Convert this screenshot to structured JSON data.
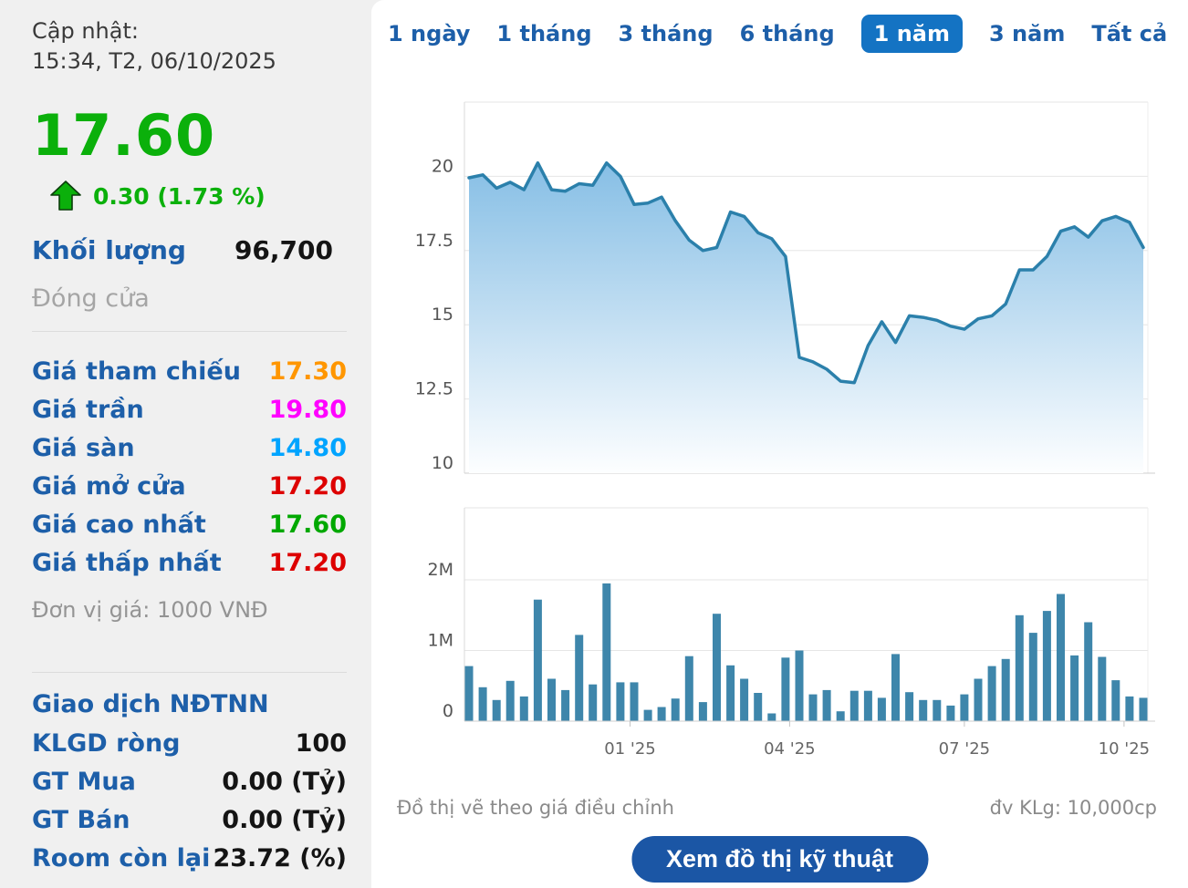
{
  "sidebar": {
    "updated_label": "Cập nhật:",
    "updated_time": "15:34, T2, 06/10/2025",
    "price": "17.60",
    "change": "0.30 (1.73 %)",
    "volume_label": "Khối lượng",
    "volume_value": "96,700",
    "close_label": "Đóng cửa",
    "price_rows": [
      {
        "label": "Giá tham chiếu",
        "value": "17.30",
        "color": "#ff9600"
      },
      {
        "label": "Giá trần",
        "value": "19.80",
        "color": "#ff00ff"
      },
      {
        "label": "Giá sàn",
        "value": "14.80",
        "color": "#00a4ff"
      },
      {
        "label": "Giá mở cửa",
        "value": "17.20",
        "color": "#dd0000"
      },
      {
        "label": "Giá cao nhất",
        "value": "17.60",
        "color": "#00a800"
      },
      {
        "label": "Giá thấp nhất",
        "value": "17.20",
        "color": "#dd0000"
      }
    ],
    "unit_note": "Đơn vị giá: 1000 VNĐ",
    "foreign_section_title": "Giao dịch NĐTNN",
    "foreign_rows": [
      {
        "label": "KLGD ròng",
        "value": "100"
      },
      {
        "label": "GT Mua",
        "value": "0.00 (Tỷ)"
      },
      {
        "label": "GT Bán",
        "value": "0.00 (Tỷ)"
      },
      {
        "label": "Room còn lại",
        "value": "23.72 (%)"
      }
    ]
  },
  "tabs": {
    "items": [
      "1 ngày",
      "1 tháng",
      "3 tháng",
      "6 tháng",
      "1 năm",
      "3 năm",
      "Tất cả"
    ],
    "active_index": 4,
    "candlestick_icon": "candlestick-chart-icon"
  },
  "chart_data": [
    {
      "type": "area",
      "series_name": "adjusted-close-price",
      "title": "",
      "xlabel": "",
      "ylabel": "",
      "y_unit": "1000 VND",
      "ylim": [
        10,
        22.5
      ],
      "yticks": [
        10,
        12.5,
        15,
        17.5,
        20
      ],
      "grid": true,
      "values": [
        19.95,
        20.05,
        19.6,
        19.8,
        19.55,
        20.45,
        19.55,
        19.5,
        19.75,
        19.7,
        20.45,
        20.0,
        19.05,
        19.1,
        19.3,
        18.5,
        17.85,
        17.5,
        17.6,
        18.8,
        18.65,
        18.1,
        17.9,
        17.3,
        13.9,
        13.75,
        13.5,
        13.1,
        13.05,
        14.3,
        15.1,
        14.4,
        15.3,
        15.25,
        15.15,
        14.95,
        14.85,
        15.2,
        15.3,
        15.7,
        16.85,
        16.85,
        17.3,
        18.15,
        18.3,
        17.95,
        18.5,
        18.65,
        18.45,
        17.6
      ]
    },
    {
      "type": "bar",
      "series_name": "volume",
      "y_unit": "millions of shares",
      "ylim": [
        0,
        3
      ],
      "yticks": [
        0,
        1,
        2
      ],
      "ytick_labels": [
        "0",
        "1M",
        "2M"
      ],
      "grid": true,
      "x_tick_labels": [
        "01 '25",
        "04 '25",
        "07 '25",
        "10 '25"
      ],
      "x_tick_indices": [
        11.7,
        23.3,
        36.0,
        47.6
      ],
      "values": [
        0.78,
        0.48,
        0.3,
        0.57,
        0.35,
        1.72,
        0.6,
        0.44,
        1.22,
        0.52,
        1.95,
        0.55,
        0.55,
        0.16,
        0.2,
        0.32,
        0.92,
        0.27,
        1.52,
        0.79,
        0.6,
        0.4,
        0.11,
        0.9,
        1.0,
        0.38,
        0.44,
        0.14,
        0.43,
        0.43,
        0.33,
        0.95,
        0.41,
        0.3,
        0.3,
        0.22,
        0.38,
        0.6,
        0.78,
        0.88,
        1.5,
        1.25,
        1.56,
        1.8,
        0.93,
        1.4,
        0.91,
        0.58,
        0.35,
        0.33
      ]
    }
  ],
  "footer": {
    "left_note": "Đồ thị vẽ theo giá điều chỉnh",
    "right_note": "đv KLg: 10,000cp",
    "button_label": "Xem đồ thị kỹ thuật"
  },
  "colors": {
    "price_up_green": "#0bb00b",
    "label_blue": "#1d5fa9",
    "tab_active_bg": "#1473c3",
    "button_bg": "#1b56a5",
    "line": "#2b80ab",
    "area_top": "#6fb2e0",
    "area_bottom": "#fdfeff",
    "bar": "#3e86ab",
    "grid": "#e6e6e6",
    "axis": "#cfcfcf",
    "tick_text": "#666666",
    "y_label_text": "#555555"
  }
}
